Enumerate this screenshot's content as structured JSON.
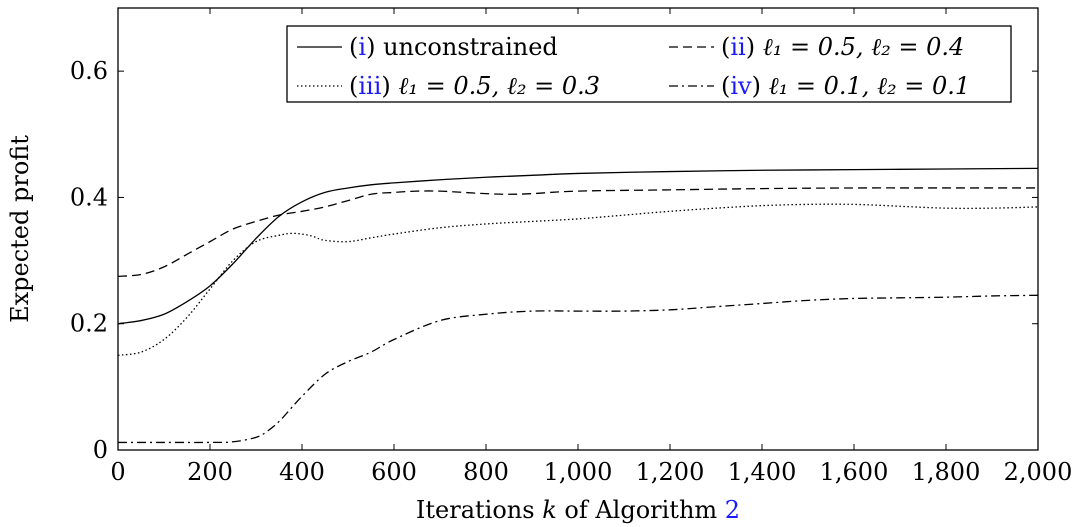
{
  "chart_data": {
    "type": "line",
    "xlabel_parts": {
      "pre": "Iterations ",
      "var": "k",
      "mid": " of Algorithm ",
      "ref": "2"
    },
    "ylabel": "Expected profit",
    "xlim": [
      0,
      2000
    ],
    "ylim": [
      0,
      0.7
    ],
    "xticks": [
      0,
      200,
      400,
      600,
      800,
      1000,
      1200,
      1400,
      1600,
      1800,
      2000
    ],
    "xtick_labels": [
      "0",
      "200",
      "400",
      "600",
      "800",
      "1,000",
      "1,200",
      "1,400",
      "1,600",
      "1,800",
      "2,000"
    ],
    "yticks": [
      0,
      0.2,
      0.4,
      0.6
    ],
    "ytick_labels": [
      "0",
      "0.2",
      "0.4",
      "0.6"
    ],
    "grid": false,
    "legend_position": "top-right",
    "series": [
      {
        "ref": "i",
        "label_text": " unconstrained",
        "style": "solid",
        "x": [
          0,
          50,
          100,
          150,
          200,
          250,
          300,
          350,
          400,
          450,
          500,
          550,
          600,
          700,
          800,
          900,
          1000,
          1200,
          1400,
          1600,
          1800,
          2000
        ],
        "y": [
          0.2,
          0.205,
          0.215,
          0.235,
          0.26,
          0.295,
          0.335,
          0.37,
          0.393,
          0.408,
          0.415,
          0.42,
          0.423,
          0.428,
          0.432,
          0.435,
          0.438,
          0.441,
          0.443,
          0.444,
          0.445,
          0.446
        ]
      },
      {
        "ref": "ii",
        "label_math": "ℓ₁ = 0.5, ℓ₂ = 0.4",
        "style": "dashed",
        "x": [
          0,
          50,
          100,
          150,
          200,
          250,
          300,
          350,
          400,
          450,
          500,
          550,
          600,
          650,
          700,
          750,
          800,
          850,
          900,
          1000,
          1200,
          1400,
          1600,
          1800,
          2000
        ],
        "y": [
          0.275,
          0.278,
          0.29,
          0.31,
          0.33,
          0.35,
          0.362,
          0.372,
          0.378,
          0.385,
          0.395,
          0.405,
          0.408,
          0.41,
          0.41,
          0.408,
          0.406,
          0.405,
          0.406,
          0.41,
          0.412,
          0.414,
          0.415,
          0.415,
          0.415
        ]
      },
      {
        "ref": "iii",
        "label_math": "ℓ₁ = 0.5, ℓ₂ = 0.3",
        "style": "dotted",
        "x": [
          0,
          50,
          100,
          150,
          200,
          250,
          300,
          350,
          375,
          400,
          425,
          450,
          500,
          550,
          600,
          700,
          800,
          900,
          1000,
          1100,
          1200,
          1300,
          1400,
          1500,
          1600,
          1700,
          1800,
          1900,
          2000
        ],
        "y": [
          0.15,
          0.155,
          0.175,
          0.21,
          0.255,
          0.3,
          0.33,
          0.34,
          0.343,
          0.342,
          0.338,
          0.332,
          0.33,
          0.336,
          0.342,
          0.352,
          0.358,
          0.362,
          0.366,
          0.372,
          0.378,
          0.383,
          0.387,
          0.389,
          0.389,
          0.386,
          0.383,
          0.383,
          0.385
        ]
      },
      {
        "ref": "iv",
        "label_math": "ℓ₁ = 0.1, ℓ₂ = 0.1",
        "style": "dashdot",
        "x": [
          0,
          100,
          200,
          250,
          300,
          325,
          350,
          375,
          400,
          450,
          500,
          550,
          600,
          700,
          800,
          900,
          1000,
          1100,
          1200,
          1300,
          1400,
          1500,
          1600,
          1700,
          1800,
          1900,
          2000
        ],
        "y": [
          0.012,
          0.012,
          0.012,
          0.013,
          0.02,
          0.03,
          0.045,
          0.065,
          0.085,
          0.12,
          0.14,
          0.155,
          0.175,
          0.205,
          0.215,
          0.22,
          0.22,
          0.22,
          0.222,
          0.227,
          0.232,
          0.237,
          0.24,
          0.241,
          0.242,
          0.244,
          0.245
        ]
      }
    ]
  }
}
